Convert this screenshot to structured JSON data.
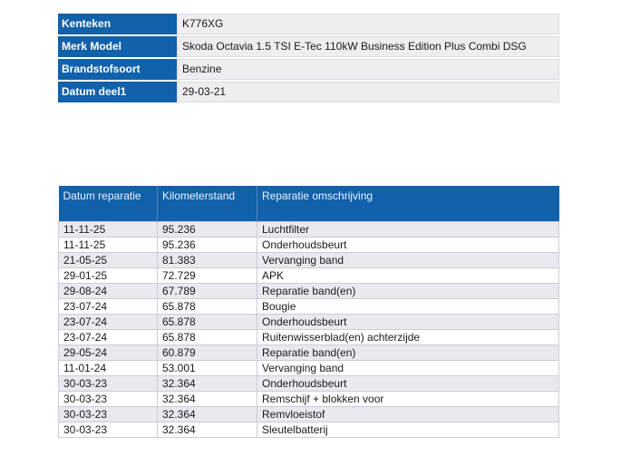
{
  "vehicle_info": {
    "rows": [
      {
        "label": "Kenteken",
        "value": "K776XG"
      },
      {
        "label": "Merk Model",
        "value": "Skoda Octavia 1.5 TSI E-Tec 110kW Business Edition Plus Combi DSG"
      },
      {
        "label": "Brandstofsoort",
        "value": "Benzine"
      },
      {
        "label": "Datum deel1",
        "value": "29-03-21"
      }
    ]
  },
  "repair_table": {
    "columns": [
      "Datum reparatie",
      "Kilometerstand",
      "Reparatie omschrijving"
    ],
    "rows": [
      {
        "date": "11-11-25",
        "km": "95.236",
        "description": "Luchtfilter"
      },
      {
        "date": "11-11-25",
        "km": "95.236",
        "description": "Onderhoudsbeurt"
      },
      {
        "date": "21-05-25",
        "km": "81.383",
        "description": "Vervanging band"
      },
      {
        "date": "29-01-25",
        "km": "72.729",
        "description": "APK"
      },
      {
        "date": "29-08-24",
        "km": "67.789",
        "description": "Reparatie band(en)"
      },
      {
        "date": "23-07-24",
        "km": "65.878",
        "description": "Bougie"
      },
      {
        "date": "23-07-24",
        "km": "65.878",
        "description": "Onderhoudsbeurt"
      },
      {
        "date": "23-07-24",
        "km": "65.878",
        "description": "Ruitenwisserblad(en) achterzijde"
      },
      {
        "date": "29-05-24",
        "km": "60.879",
        "description": "Reparatie band(en)"
      },
      {
        "date": "11-01-24",
        "km": "53.001",
        "description": "Vervanging band"
      },
      {
        "date": "30-03-23",
        "km": "32.364",
        "description": "Onderhoudsbeurt"
      },
      {
        "date": "30-03-23",
        "km": "32.364",
        "description": "Remschijf + blokken voor"
      },
      {
        "date": "30-03-23",
        "km": "32.364",
        "description": "Remvloeistof"
      },
      {
        "date": "30-03-23",
        "km": "32.364",
        "description": "Sleutelbatterij"
      }
    ]
  },
  "colors": {
    "header_blue": "#1261ab",
    "row_alternate": "#e9e9f0",
    "row_base": "#ffffff",
    "body_border": "#c9cdd7",
    "text": "#1b1b1b",
    "header_text": "#eef4fb",
    "info_value_background": "#ededf2"
  }
}
